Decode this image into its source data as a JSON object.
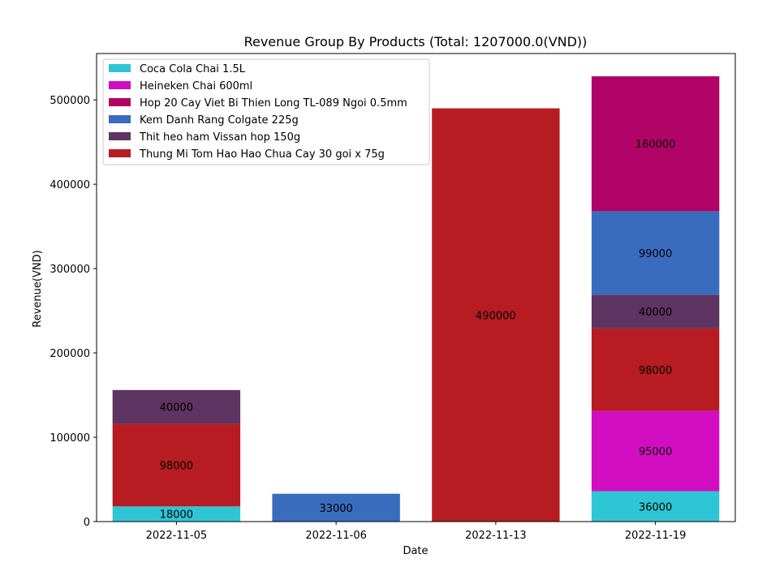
{
  "chart_data": {
    "type": "bar",
    "stacked": true,
    "title": "Revenue Group By Products (Total: 1207000.0(VND))",
    "xlabel": "Date",
    "ylabel": "Revenue(VND)",
    "ylim": [
      0,
      555000
    ],
    "yticks": [
      0,
      100000,
      200000,
      300000,
      400000,
      500000
    ],
    "ytick_labels": [
      "0",
      "100000",
      "200000",
      "300000",
      "400000",
      "500000"
    ],
    "categories": [
      "2022-11-05",
      "2022-11-06",
      "2022-11-13",
      "2022-11-19"
    ],
    "legend_position": "top-left",
    "grid": false,
    "series": [
      {
        "name": "Coca Cola Chai 1.5L",
        "color": "#2ec6d4",
        "values": [
          18000,
          0,
          0,
          36000
        ]
      },
      {
        "name": "Heineken Chai 600ml",
        "color": "#d30dc2",
        "values": [
          0,
          0,
          0,
          95000
        ]
      },
      {
        "name": "Thung Mi Tom Hao Hao Chua Cay 30 goi x 75g",
        "color": "#b71c22",
        "values": [
          98000,
          0,
          490000,
          98000
        ]
      },
      {
        "name": "Thit heo ham Vissan hop 150g",
        "color": "#5e3462",
        "values": [
          40000,
          0,
          0,
          40000
        ]
      },
      {
        "name": "Kem Danh Rang Colgate 225g",
        "color": "#3a6cbe",
        "values": [
          0,
          33000,
          0,
          99000
        ]
      },
      {
        "name": "Hop 20 Cay Viet Bi Thien Long TL-089 Ngoi 0.5mm",
        "color": "#b00366",
        "values": [
          0,
          0,
          0,
          160000
        ]
      }
    ],
    "legend_order": [
      "Coca Cola Chai 1.5L",
      "Heineken Chai 600ml",
      "Hop 20 Cay Viet Bi Thien Long TL-089 Ngoi 0.5mm",
      "Kem Danh Rang Colgate 225g",
      "Thit heo ham Vissan hop 150g",
      "Thung Mi Tom Hao Hao Chua Cay 30 goi x 75g"
    ]
  }
}
